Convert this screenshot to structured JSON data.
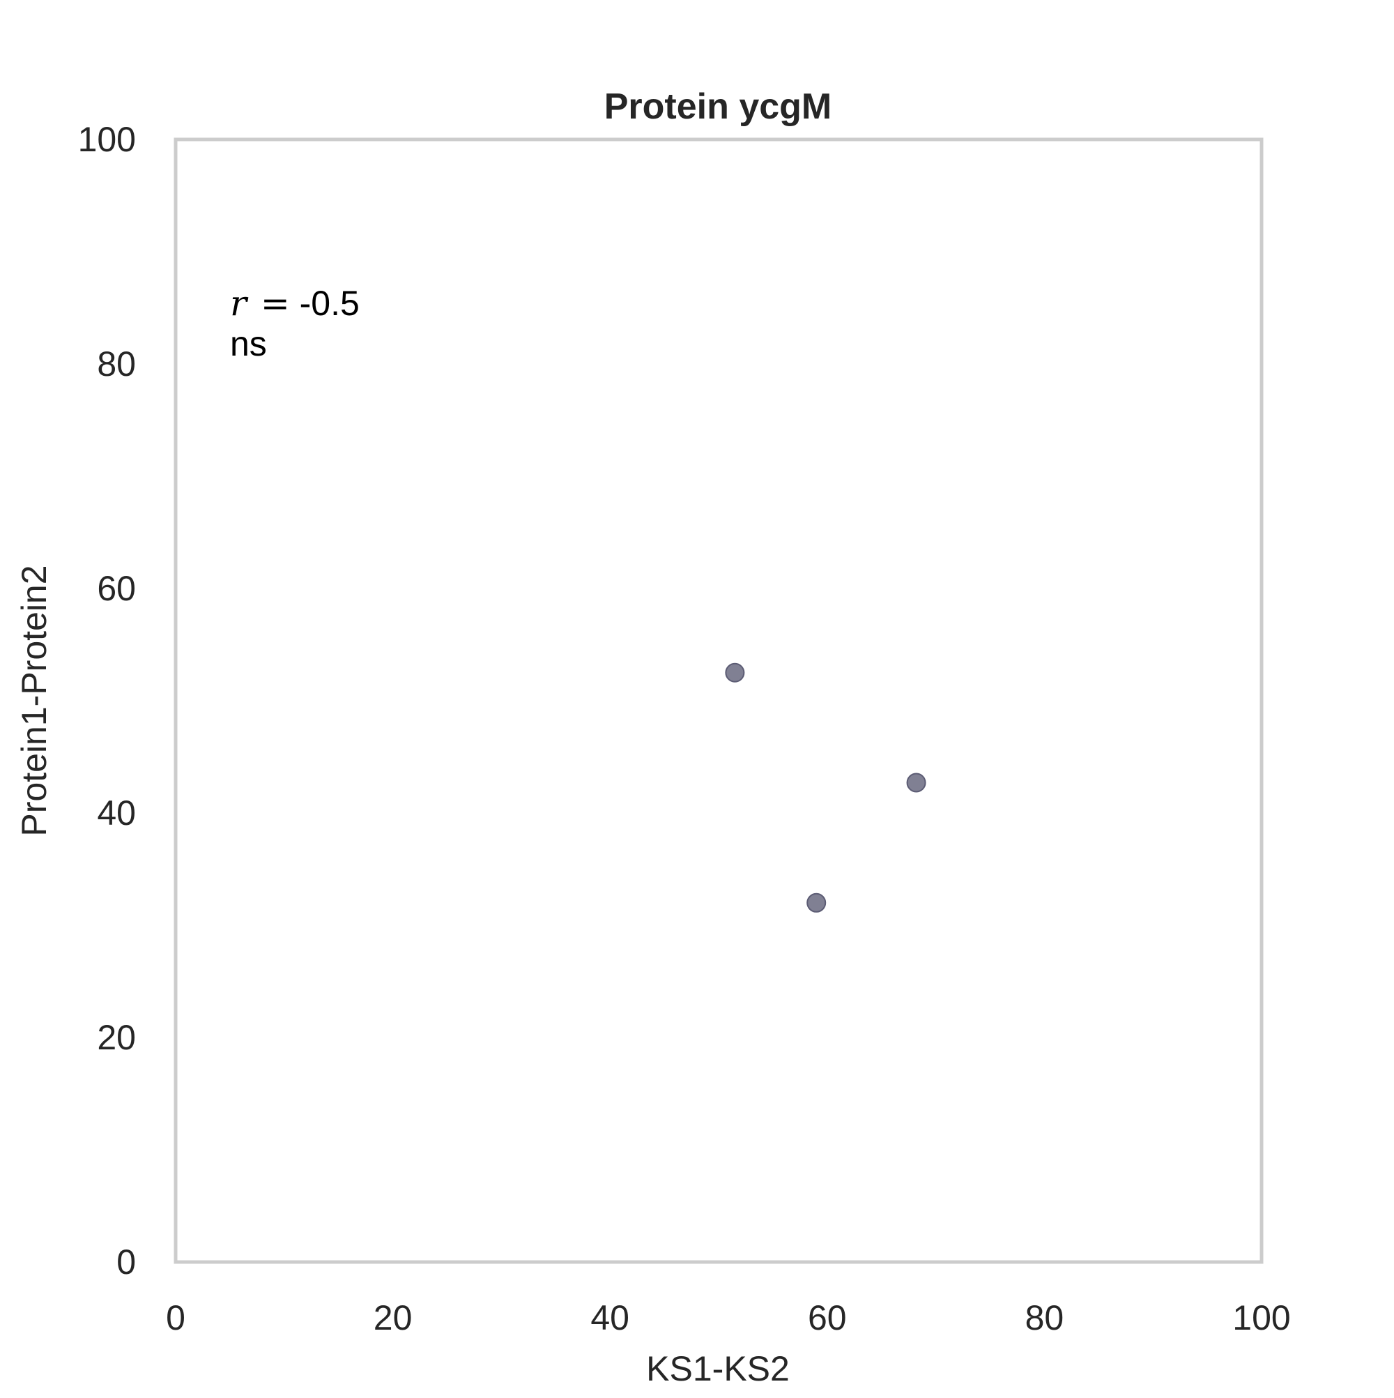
{
  "chart_data": {
    "type": "scatter",
    "title": "Protein ycgM",
    "xlabel": "KS1-KS2",
    "ylabel": "Protein1-Protein2",
    "xlim": [
      0,
      100
    ],
    "ylim": [
      0,
      100
    ],
    "xticks": [
      0,
      20,
      40,
      60,
      80,
      100
    ],
    "yticks": [
      0,
      20,
      40,
      60,
      80,
      100
    ],
    "grid": false,
    "points": [
      {
        "x": 51.5,
        "y": 52.5
      },
      {
        "x": 68.2,
        "y": 42.7
      },
      {
        "x": 59.0,
        "y": 32.0
      }
    ],
    "annotation": {
      "r_symbol": "r",
      "r_equals": "=",
      "r_value": "-0.5",
      "significance": "ns"
    },
    "colors": {
      "point": "#5c5c74",
      "frame": "#cccccc",
      "text": "#262626"
    }
  }
}
